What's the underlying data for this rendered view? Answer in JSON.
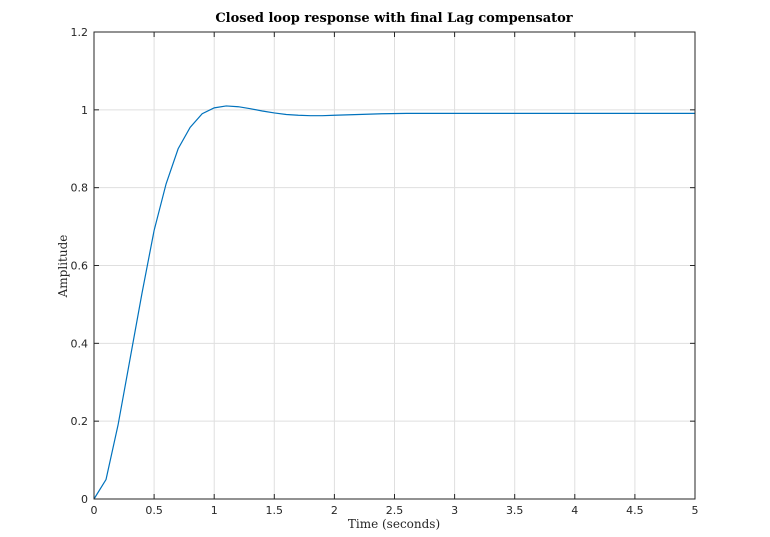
{
  "chart_data": {
    "type": "line",
    "title": "Closed loop response with final Lag compensator",
    "xlabel": "Time (seconds)",
    "ylabel": "Amplitude",
    "xlim": [
      0,
      5
    ],
    "ylim": [
      0,
      1.2
    ],
    "grid": true,
    "xticks": [
      0,
      0.5,
      1,
      1.5,
      2,
      2.5,
      3,
      3.5,
      4,
      4.5,
      5
    ],
    "xtick_labels": [
      "0",
      "0.5",
      "1",
      "1.5",
      "2",
      "2.5",
      "3",
      "3.5",
      "4",
      "4.5",
      "5"
    ],
    "yticks": [
      0,
      0.2,
      0.4,
      0.6,
      0.8,
      1,
      1.2
    ],
    "ytick_labels": [
      "0",
      "0.2",
      "0.4",
      "0.6",
      "0.8",
      "1",
      "1.2"
    ],
    "series": [
      {
        "color": "#0072bd",
        "x": [
          0,
          0.1,
          0.2,
          0.3,
          0.4,
          0.5,
          0.6,
          0.7,
          0.8,
          0.9,
          1.0,
          1.1,
          1.2,
          1.3,
          1.4,
          1.5,
          1.6,
          1.7,
          1.8,
          1.9,
          2.0,
          2.2,
          2.4,
          2.6,
          2.8,
          3.0,
          3.5,
          4.0,
          4.5,
          5.0
        ],
        "y": [
          0,
          0.05,
          0.19,
          0.36,
          0.53,
          0.69,
          0.81,
          0.9,
          0.955,
          0.99,
          1.005,
          1.01,
          1.008,
          1.003,
          0.997,
          0.992,
          0.988,
          0.986,
          0.985,
          0.985,
          0.986,
          0.988,
          0.99,
          0.991,
          0.991,
          0.991,
          0.991,
          0.991,
          0.991,
          0.991
        ]
      }
    ]
  }
}
